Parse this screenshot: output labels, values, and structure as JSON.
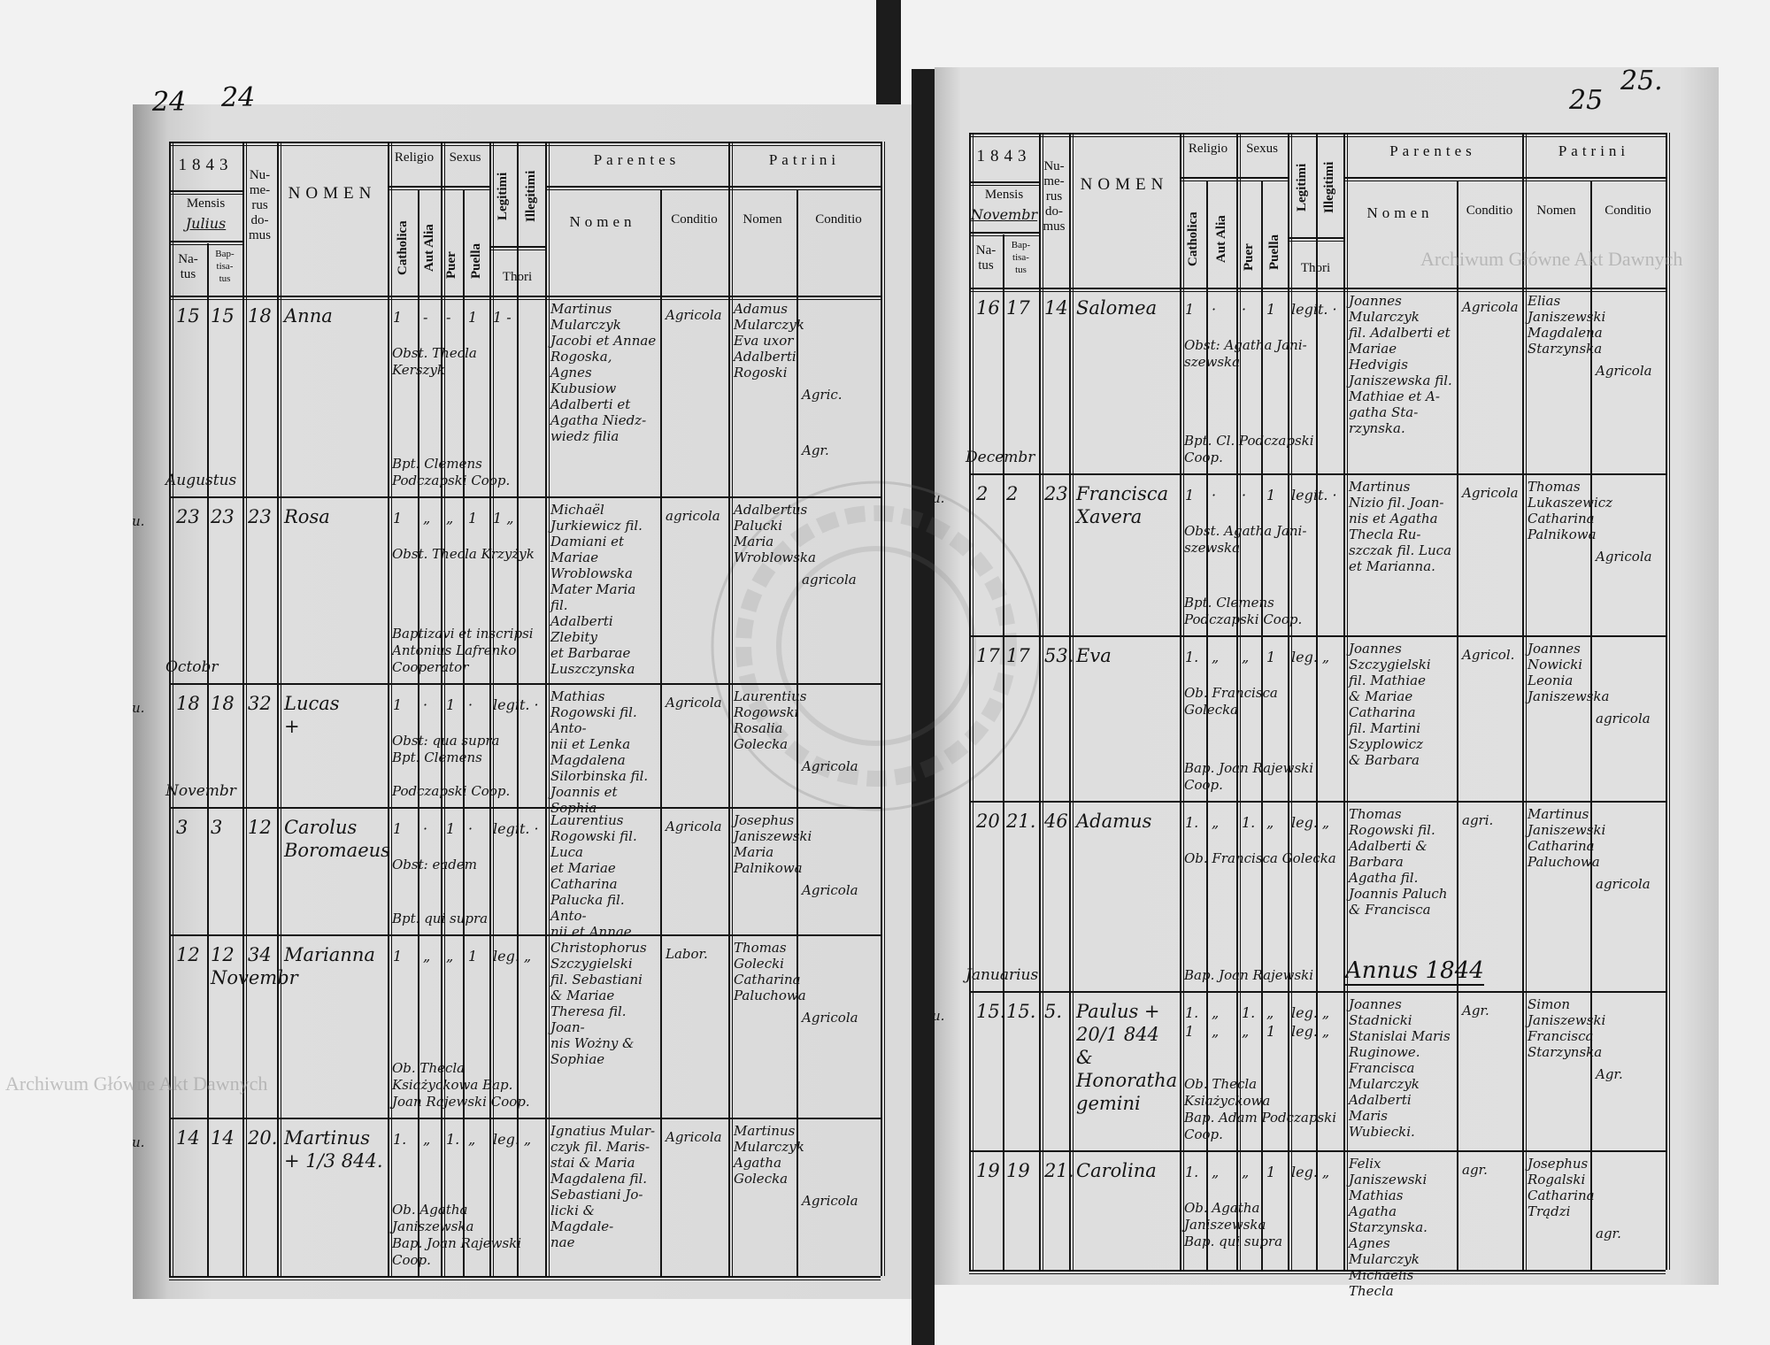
{
  "header": {
    "mensis": "Mensis",
    "natus": "Na-\ntus",
    "baptisatus": "Bap-\ntisa-\ntus",
    "numerus_domus": "Nu-\nme-\nrus\ndo-\nmus",
    "nomen": "NOMEN",
    "religio": "Religio",
    "catholica": "Catholica",
    "aut_alia": "Aut Alia",
    "sexus": "Sexus",
    "puer": "Puer",
    "puella": "Puella",
    "legitimi": "Legitimi",
    "illegitimi": "Illegitimi",
    "thori": "Thori",
    "parentes": "Parentes",
    "patrini": "Patrini",
    "sub_nomen": "Nomen",
    "sub_conditio": "Conditio"
  },
  "watermark": "Archiwum Główne Akt Dawnych",
  "seal_text": "ARCHIWUM GŁÓWNE AKT DAWNYCH",
  "pages": [
    {
      "page_number": "24",
      "page_number_old": "24",
      "year": "1843",
      "month": "Julius",
      "rows": [
        {
          "month_label": "",
          "prefix": "",
          "natus": "15",
          "baptisatus": "15",
          "domus": "18",
          "nomen": "Anna",
          "marks": [
            "1",
            "-",
            "-",
            "1",
            "1",
            "-"
          ],
          "parentes_nomen": "Martinus\nMularczyk\nJacobi et Annae\nRogoska,\nAgnes Kubusiow\nAdalberti et\nAgatha Niedz-\nwiedz filia",
          "parentes_conditio": "Agricola",
          "patrini_nomen": "Adamus\nMularczyk\nEva uxor\nAdalberti\nRogoski",
          "patrini_conditio": "Agric.\n\n\nAgr.",
          "notes": [
            "Obst. Thecla\nKerszyk",
            "Bpt. Clemens Podczapski Coop."
          ]
        },
        {
          "month_label": "Augustus",
          "prefix": "u.",
          "natus": "23",
          "baptisatus": "23",
          "domus": "23",
          "nomen": "Rosa",
          "marks": [
            "1",
            "„",
            "„",
            "1",
            "1",
            "„"
          ],
          "parentes_nomen": "Michaël\nJurkiewicz fil.\nDamiani et\nMariae Wroblowska\nMater Maria fil.\nAdalberti Zlebity\net Barbarae\nLuszczynska",
          "parentes_conditio": "agricola",
          "patrini_nomen": "Adalbertus\nPalucki\nMaria\nWroblowska",
          "patrini_conditio": "agricola",
          "notes": [
            "Obst. Thecla Krzyżyk",
            "Baptizavi et inscripsi Antonius Lafrenko Cooperator"
          ]
        },
        {
          "month_label": "Octobr",
          "prefix": "u.",
          "natus": "18",
          "baptisatus": "18",
          "domus": "32",
          "nomen": "Lucas\n  +",
          "marks": [
            "1",
            "·",
            "1",
            "·",
            "legit.",
            "·"
          ],
          "parentes_nomen": "Mathias\nRogowski fil. Anto-\nnii et Lenka\nMagdalena\nSilorbinska fil.\nJoannis et Sophia",
          "parentes_conditio": "Agricola",
          "patrini_nomen": "Laurentius\nRogowski\nRosalia\nGolecka",
          "patrini_conditio": "Agricola",
          "notes": [
            "Obst: qua supra\nBpt. Clemens",
            "Podczapski Coop."
          ]
        },
        {
          "month_label": "Novembr",
          "prefix": "",
          "natus": "3",
          "baptisatus": "3",
          "domus": "12",
          "nomen": "Carolus\n  Boromaeus",
          "marks": [
            "1",
            "·",
            "1",
            "·",
            "legit.",
            "·"
          ],
          "parentes_nomen": "Laurentius\nRogowski fil. Luca\net Mariae\nCatharina\nPalucka fil. Anto-\nnii et Annae",
          "parentes_conditio": "Agricola",
          "patrini_nomen": "Josephus\nJaniszewski\nMaria\nPalnikowa",
          "patrini_conditio": "Agricola",
          "notes": [
            "Obst: eadem",
            "Bpt. qui supra"
          ]
        },
        {
          "month_label": "",
          "prefix": "",
          "natus": "12",
          "baptisatus": "12\nNovembr",
          "domus": "34",
          "nomen": "Marianna",
          "marks": [
            "1",
            "„",
            "„",
            "1",
            "leg.",
            "„"
          ],
          "parentes_nomen": "Christophorus\nSzczygielski\nfil. Sebastiani\n& Mariae\nTheresa fil. Joan-\nnis Wożny &\nSophiae",
          "parentes_conditio": "Labor.",
          "patrini_nomen": "Thomas\nGolecki\nCatharina\nPaluchowa",
          "patrini_conditio": "Agricola",
          "notes": [
            "",
            "Ob. Thecla Ksiażyckowa   Bap. Joan Rajewski Coop."
          ]
        },
        {
          "month_label": "",
          "prefix": "u.",
          "natus": "14",
          "baptisatus": "14",
          "domus": "20.",
          "nomen": "Martinus\n+ 1/3 844.",
          "marks": [
            "1.",
            "„",
            "1.",
            "„",
            "leg.",
            "„"
          ],
          "parentes_nomen": "Ignatius Mular-\nczyk fil. Maris-\nstai & Maria\nMagdalena fil.\nSebastiani Jo-\nlicki & Magdale-\nnae",
          "parentes_conditio": "Agricola",
          "patrini_nomen": "Martinus\nMularczyk\nAgatha\nGolecka",
          "patrini_conditio": "Agricola",
          "notes": [
            "",
            "Ob. Agatha Janiszewska\nBap. Joan Rajewski Coop."
          ]
        }
      ]
    },
    {
      "page_number": "25.",
      "page_number_old": "25",
      "year": "1843",
      "month": "Novembr",
      "annus": "Annus 1844",
      "rows": [
        {
          "month_label": "",
          "prefix": "",
          "natus": "16",
          "baptisatus": "17",
          "domus": "14",
          "nomen": "Salomea",
          "marks": [
            "1",
            "·",
            "·",
            "1",
            "legit.",
            "·"
          ],
          "parentes_nomen": "Joannes\nMularczyk\nfil. Adalberti et\nMariae\nHedvigis\nJaniszewska fil.\nMathiae et A-\ngatha Sta-\nrzynska.",
          "parentes_conditio": "Agricola",
          "patrini_nomen": "Elias\nJaniszewski\nMagdalena\nStarzynska",
          "patrini_conditio": "Agricola",
          "notes": [
            "Obst: Agatha Jani-\nszewska",
            "Bpt. Cl. Podczapski\nCoop."
          ]
        },
        {
          "month_label": "Decembr",
          "prefix": "u.",
          "natus": "2",
          "baptisatus": "2",
          "domus": "23",
          "nomen": "Francisca\n  Xavera",
          "marks": [
            "1",
            "·",
            "·",
            "1",
            "legit.",
            "·"
          ],
          "parentes_nomen": "Martinus\nNizio fil. Joan-\nnis et Agatha\nThecla Ru-\nszczak fil. Luca\net Marianna.",
          "parentes_conditio": "Agricola",
          "patrini_nomen": "Thomas\nLukaszewicz\nCatharina\nPalnikowa",
          "patrini_conditio": "Agricola",
          "notes": [
            "Obst. Agatha Jani-\nszewska",
            "Bpt. Clemens Podczapski Coop."
          ]
        },
        {
          "month_label": "",
          "prefix": "",
          "natus": "17",
          "baptisatus": "17",
          "domus": "53.",
          "nomen": "Eva",
          "marks": [
            "1.",
            "„",
            "„",
            "1",
            "leg.",
            "„"
          ],
          "parentes_nomen": "Joannes\nSzczygielski\nfil. Mathiae\n& Mariae\nCatharina\nfil. Martini\nSzyplowicz\n& Barbara",
          "parentes_conditio": "Agricol.",
          "patrini_nomen": "Joannes\nNowicki\nLeonia\nJaniszewska",
          "patrini_conditio": "agricola",
          "notes": [
            "Ob. Francisca\nGolecka",
            "Bap. Joan Rajewski Coop."
          ]
        },
        {
          "month_label": "",
          "prefix": "",
          "natus": "20",
          "baptisatus": "21.",
          "domus": "46",
          "nomen": "Adamus",
          "marks": [
            "1.",
            "„",
            "1.",
            "„",
            "leg.",
            "„"
          ],
          "parentes_nomen": "Thomas\nRogowski fil.\nAdalberti &\nBarbara\nAgatha fil.\nJoannis Paluch\n& Francisca",
          "parentes_conditio": "agri.",
          "patrini_nomen": "Martinus\nJaniszewski\nCatharina\nPaluchowa",
          "patrini_conditio": "agricola",
          "notes": [
            "Ob. Francisca Golecka",
            "Bap. Joan Rajewski"
          ]
        },
        {
          "month_label": "Januarius",
          "prefix": "u.",
          "natus": "15.",
          "baptisatus": "15.",
          "domus": "5.",
          "nomen": "Paulus + 20/1 844\n  &\nHonoratha\ngemini",
          "marks": [
            "1.\n1",
            "„\n„",
            "1.\n„",
            "„\n1",
            "leg.\nleg.",
            "„\n„"
          ],
          "parentes_nomen": "Joannes\nStadnicki\nStanislai Maris\nRuginowe.\nFrancisca\nMularczyk\nAdalberti Maris\nWubiecki.",
          "parentes_conditio": "Agr.",
          "patrini_nomen": "Simon\nJaniszewski\nFrancisca\nStarzynska",
          "patrini_conditio": "Agr.",
          "notes": [
            "",
            "Ob. Thecla Ksiażyckowa\nBap. Adam Podczapski Coop."
          ]
        },
        {
          "month_label": "",
          "prefix": "",
          "natus": "19",
          "baptisatus": "19",
          "domus": "21.",
          "nomen": "Carolina",
          "marks": [
            "1.",
            "„",
            "„",
            "1",
            "leg.",
            "„"
          ],
          "parentes_nomen": "Felix\nJaniszewski\nMathias Agatha\nStarzynska.\nAgnes\nMularczyk\nMichaelis Thecla",
          "parentes_conditio": "agr.",
          "patrini_nomen": "Josephus\nRogalski\nCatharina\nTrądzi",
          "patrini_conditio": "agr.",
          "notes": [
            "Ob. Agatha Janiszewska\nBap. qui supra",
            ""
          ]
        }
      ]
    }
  ]
}
